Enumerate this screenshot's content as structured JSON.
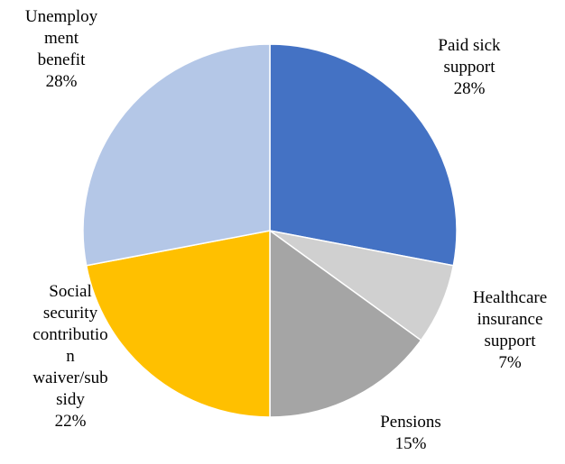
{
  "chart_data": {
    "type": "pie",
    "title": "",
    "start_angle_deg": 0,
    "direction": "clockwise",
    "slices": [
      {
        "label_lines": [
          "Paid sick",
          "support"
        ],
        "percent_label": "28%",
        "value": 28,
        "color": "#4472C4"
      },
      {
        "label_lines": [
          "Healthcare",
          "insurance",
          "support"
        ],
        "percent_label": "7%",
        "value": 7,
        "color": "#D0D0D0"
      },
      {
        "label_lines": [
          "Pensions"
        ],
        "percent_label": "15%",
        "value": 15,
        "color": "#A5A5A5"
      },
      {
        "label_lines": [
          "Social",
          "security",
          "contributio",
          "n",
          "waiver/sub",
          "sidy"
        ],
        "percent_label": "22%",
        "value": 22,
        "color": "#FFC000"
      },
      {
        "label_lines": [
          "Unemploy",
          "ment",
          "benefit"
        ],
        "percent_label": "28%",
        "value": 28,
        "color": "#B4C7E7"
      }
    ]
  }
}
